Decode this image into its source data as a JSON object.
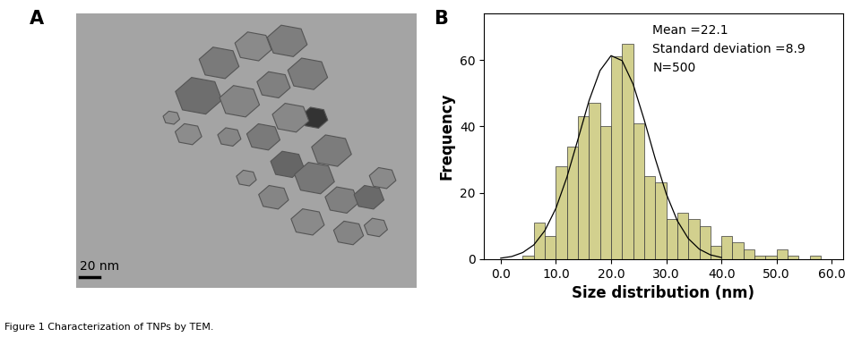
{
  "caption": "Figure 1 Characterization of TNPs by TEM.",
  "image_panel": {
    "panel_label": "A",
    "scale_bar": "20 nm"
  },
  "chart_data": {
    "type": "histogram",
    "panel_label": "B",
    "x_label": "Size distribution (nm)",
    "y_label": "Frequency",
    "annotations": [
      "Mean =22.1",
      "Standard deviation =8.9",
      "N=500"
    ],
    "bins": [
      4,
      6,
      8,
      10,
      12,
      14,
      16,
      18,
      20,
      22,
      24,
      26,
      28,
      30,
      32,
      34,
      36,
      38,
      40,
      42,
      44,
      46,
      48,
      50,
      52,
      54,
      56,
      58
    ],
    "counts": [
      1,
      11,
      7,
      28,
      34,
      43,
      47,
      40,
      61,
      65,
      41,
      25,
      23,
      12,
      14,
      12,
      10,
      4,
      7,
      5,
      3,
      1,
      1,
      3,
      1,
      0,
      1
    ],
    "color": "#d2d08e",
    "fit_curve": {
      "x": [
        0,
        2,
        4,
        6,
        8,
        10,
        12,
        14,
        16,
        18,
        20,
        22,
        24,
        26,
        28,
        30,
        32,
        34,
        36,
        38,
        40
      ],
      "y": [
        0.3,
        0.8,
        2.0,
        4.3,
        8.6,
        15.3,
        24.7,
        36.1,
        47.7,
        56.8,
        61.3,
        59.8,
        52.7,
        42.0,
        30.3,
        19.7,
        11.6,
        6.2,
        3.0,
        1.3,
        0.5
      ],
      "color": "#000000"
    },
    "xlim": [
      -3,
      62
    ],
    "ylim": [
      0,
      74
    ],
    "xticks": [
      {
        "value": 0,
        "label": "0.0"
      },
      {
        "value": 10,
        "label": "10.0"
      },
      {
        "value": 20,
        "label": "20.0"
      },
      {
        "value": 30,
        "label": "30.0"
      },
      {
        "value": 40,
        "label": "40.0"
      },
      {
        "value": 50,
        "label": "50.0"
      },
      {
        "value": 60,
        "label": "60.0"
      }
    ],
    "yticks": [
      0,
      20,
      40,
      60
    ],
    "grid": false
  }
}
